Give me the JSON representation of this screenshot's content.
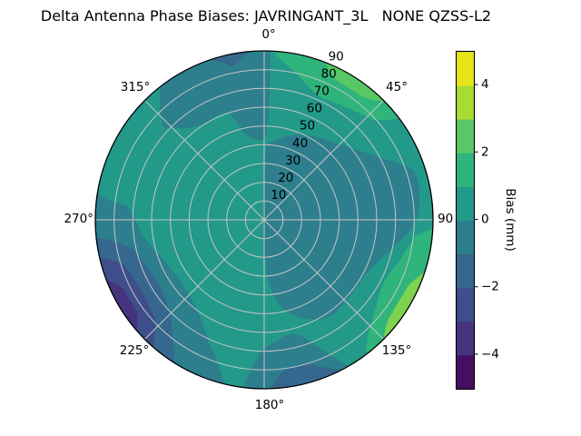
{
  "title": "Delta Antenna Phase Biases: JAVRINGANT_3L   NONE QZSS-L2",
  "palette": {
    "figure_background": "#ffffff",
    "grid": "#c6c6c6",
    "axis_edge": "#000000",
    "text": "#000000",
    "level_4_5": "#e6e419",
    "level_3_4": "#a8db34",
    "level_2_3": "#58c765",
    "level_1_2": "#2fb47c",
    "level_0_1": "#23998a",
    "level_m1_0": "#2d7f8d",
    "level_m2_m1": "#36678e",
    "level_m3_m2": "#3e4e8a",
    "level_m4_m3": "#46337e",
    "level_m5_m4": "#470d60",
    "right_rim_streak": "#7ed24f"
  },
  "chart_data": {
    "type": "polar_contour",
    "title": "Delta Antenna Phase Biases: JAVRINGANT_3L   NONE QZSS-L2",
    "antenna": "JAVRINGANT_3L",
    "dome": "NONE",
    "signal": "QZSS-L2",
    "theta_zero_location": "top",
    "theta_direction": "clockwise",
    "theta_tick_labels": [
      "0°",
      "45°",
      "90",
      "135°",
      "180°",
      "225°",
      "270°",
      "315°"
    ],
    "r_tick_labels": [
      "10",
      "20",
      "30",
      "40",
      "50",
      "60",
      "70",
      "80",
      "90"
    ],
    "r_max": 90,
    "grid": true,
    "background_bias_mm": "0 to 1",
    "colorbar": {
      "label": "Bias (mm)",
      "tick_labels": [
        "4",
        "2",
        "0",
        "−2",
        "−4"
      ],
      "tick_values": [
        4,
        2,
        0,
        -2,
        -4
      ],
      "range_mm": [
        -5,
        5
      ],
      "level_step_mm": 1,
      "segment_colors_bottom_to_top": [
        "#470d60",
        "#46337e",
        "#3e4e8a",
        "#36678e",
        "#2d7f8d",
        "#23998a",
        "#2fb47c",
        "#58c765",
        "#a8db34",
        "#e6e419"
      ]
    },
    "regions": [
      {
        "location": "top",
        "azimuth_deg": "322–2",
        "r_range": "45–90",
        "bias_mm": "-1 to 0"
      },
      {
        "location": "top rim sliver",
        "azimuth_deg": "342–355",
        "r_range": "84–90",
        "bias_mm": "-2 to -1"
      },
      {
        "location": "center and right of center",
        "azimuth_deg": "0–150",
        "r_range": "0–85",
        "bias_mm": "-1 to 0"
      },
      {
        "location": "bottom",
        "azimuth_deg": "150–187",
        "r_range": "62–90",
        "bias_mm": "-1 to 0"
      },
      {
        "location": "bottom rim core",
        "azimuth_deg": "152–178",
        "r_range": "81–90",
        "bias_mm": "-2 to -1"
      },
      {
        "location": "lower-left",
        "azimuth_deg": "193–279",
        "r_range": "55–90",
        "bias_mm": "-1 to 0"
      },
      {
        "location": "lower-left band",
        "azimuth_deg": "212–264",
        "r_range": "65–90",
        "bias_mm": "-2 to -1"
      },
      {
        "location": "lower-left band",
        "azimuth_deg": "221–257",
        "r_range": "72–90",
        "bias_mm": "-3 to -2"
      },
      {
        "location": "lower-left rim patch",
        "azimuth_deg": "229–249",
        "r_range": "78–90",
        "bias_mm": "-4 to -3"
      },
      {
        "location": "upper-right",
        "azimuth_deg": "2–53",
        "r_range": "72–90",
        "bias_mm": "1 to 2"
      },
      {
        "location": "upper-right rim streak",
        "azimuth_deg": "21–45",
        "r_range": "81–90",
        "bias_mm": "2 to 3"
      },
      {
        "location": "right",
        "azimuth_deg": "93–143",
        "r_range": "65–90",
        "bias_mm": "1 to 2"
      },
      {
        "location": "right rim streak",
        "azimuth_deg": "108–135",
        "r_range": "84–90",
        "bias_mm": "2 to 4"
      }
    ]
  }
}
